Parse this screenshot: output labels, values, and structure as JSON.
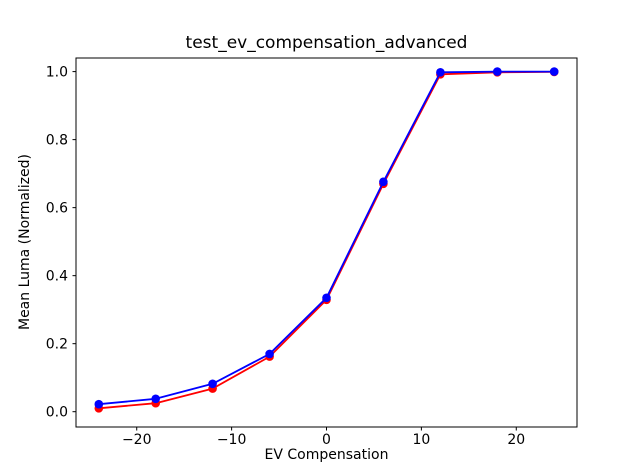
{
  "figure": {
    "background": "#ffffff",
    "text_color": "#000000",
    "spine_color": "#000000"
  },
  "chart_data": {
    "type": "line",
    "title": "test_ev_compensation_advanced",
    "xlabel": "EV Compensation",
    "ylabel": "Mean Luma (Normalized)",
    "x": [
      -24,
      -18,
      -12,
      -6,
      0,
      6,
      12,
      18,
      24
    ],
    "series": [
      {
        "name": "red-series",
        "color": "#ff0000",
        "marker": "circle",
        "values": [
          0.01,
          0.025,
          0.068,
          0.162,
          0.329,
          0.67,
          0.992,
          0.998,
          0.999
        ]
      },
      {
        "name": "blue-series",
        "color": "#0000ff",
        "marker": "circle",
        "values": [
          0.022,
          0.038,
          0.082,
          0.17,
          0.335,
          0.676,
          0.998,
          1.0,
          1.0
        ]
      }
    ],
    "xticks": [
      -20,
      -10,
      0,
      10,
      20
    ],
    "xtick_labels": [
      "−20",
      "−10",
      "0",
      "10",
      "20"
    ],
    "yticks": [
      0.0,
      0.2,
      0.4,
      0.6,
      0.8,
      1.0
    ],
    "ytick_labels": [
      "0.0",
      "0.2",
      "0.4",
      "0.6",
      "0.8",
      "1.0"
    ],
    "xlim": [
      -26.4,
      26.4
    ],
    "ylim": [
      -0.045,
      1.04
    ],
    "grid": false,
    "legend": "none",
    "marker_radius": 4.3,
    "line_width": 1.8
  }
}
